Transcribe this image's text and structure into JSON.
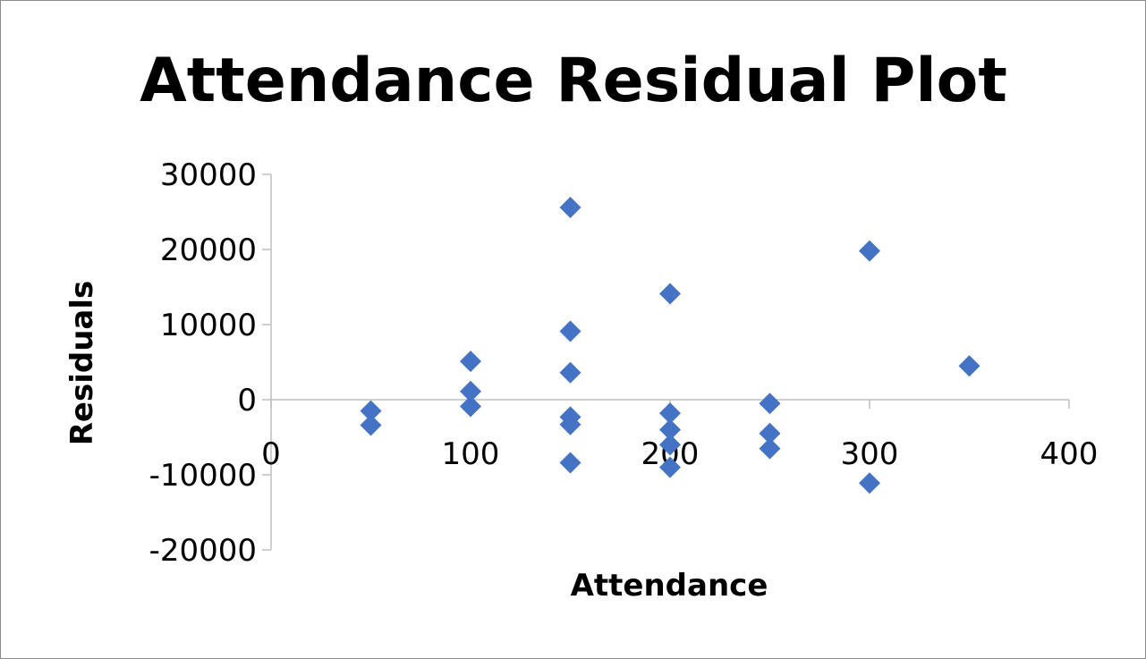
{
  "chart_data": {
    "type": "scatter",
    "title": "Attendance  Residual Plot",
    "xlabel": "Attendance",
    "ylabel": "Residuals",
    "xlim": [
      0,
      400
    ],
    "ylim": [
      -20000,
      30000
    ],
    "x_ticks": [
      "0",
      "100",
      "200",
      "300",
      "400"
    ],
    "y_ticks": [
      "30000",
      "20000",
      "10000",
      "0",
      "-10000",
      "-20000"
    ],
    "grid": false,
    "legend": "none",
    "marker": "diamond",
    "marker_color": "#4472C4",
    "axis_color": "#bfbfbf",
    "points": [
      {
        "x": 50,
        "y": -1500
      },
      {
        "x": 50,
        "y": -3400
      },
      {
        "x": 100,
        "y": 5100
      },
      {
        "x": 100,
        "y": 1100
      },
      {
        "x": 100,
        "y": -900
      },
      {
        "x": 150,
        "y": 25600
      },
      {
        "x": 150,
        "y": 9100
      },
      {
        "x": 150,
        "y": 3600
      },
      {
        "x": 150,
        "y": -2300
      },
      {
        "x": 150,
        "y": -3300
      },
      {
        "x": 150,
        "y": -8400
      },
      {
        "x": 200,
        "y": 14100
      },
      {
        "x": 200,
        "y": -1800
      },
      {
        "x": 200,
        "y": -4000
      },
      {
        "x": 200,
        "y": -6000
      },
      {
        "x": 200,
        "y": -9000
      },
      {
        "x": 250,
        "y": -500
      },
      {
        "x": 250,
        "y": -4500
      },
      {
        "x": 250,
        "y": -6500
      },
      {
        "x": 300,
        "y": 19800
      },
      {
        "x": 300,
        "y": -11100
      },
      {
        "x": 350,
        "y": 4500
      }
    ]
  }
}
